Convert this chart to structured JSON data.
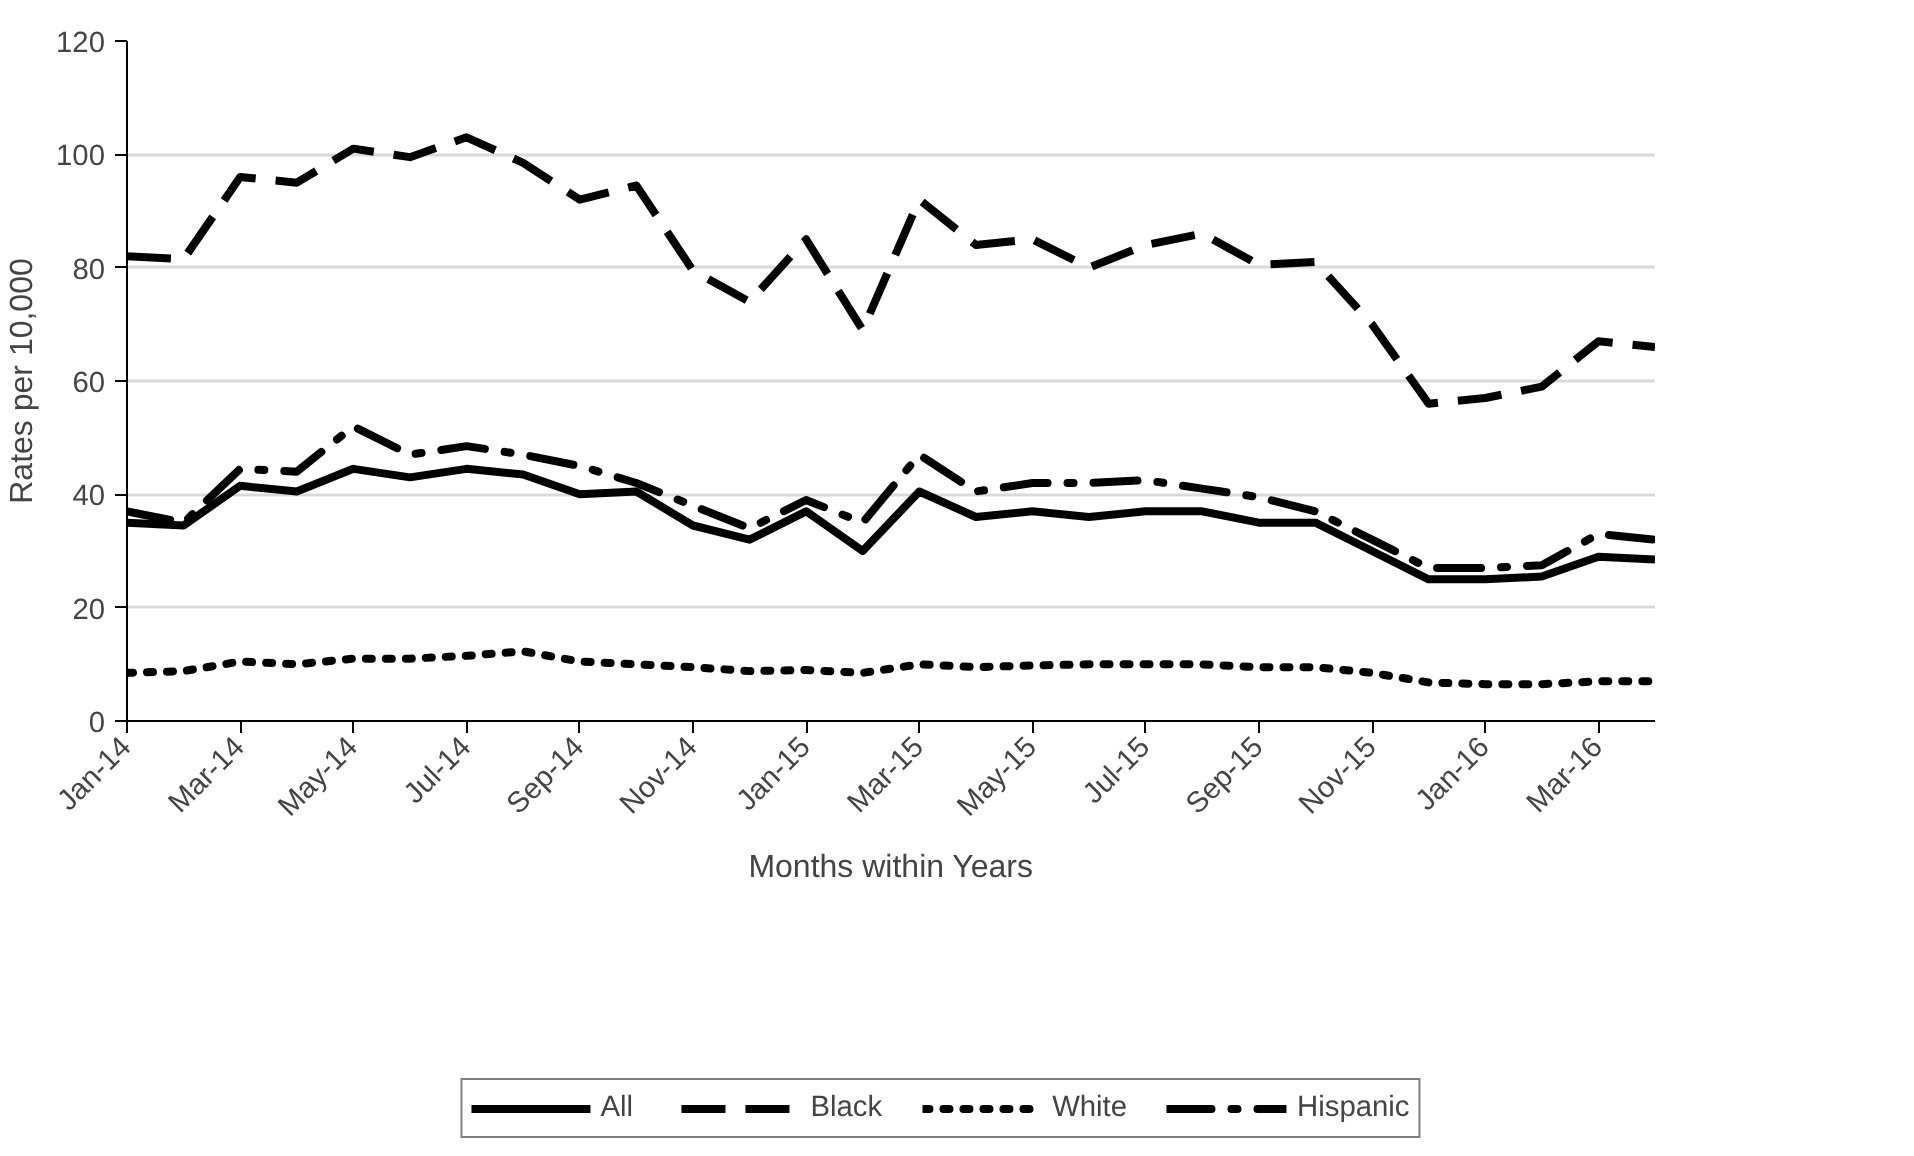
{
  "chart_data": {
    "type": "line",
    "xlabel": "Months within Years",
    "ylabel": "Rates per 10,000",
    "categories": [
      "Jan-14",
      null,
      "Mar-14",
      null,
      "May-14",
      null,
      "Jul-14",
      null,
      "Sep-14",
      null,
      "Nov-14",
      null,
      "Jan-15",
      null,
      "Mar-15",
      null,
      "May-15",
      null,
      "Jul-15",
      null,
      "Sep-15",
      null,
      "Nov-15",
      null,
      "Jan-16",
      null,
      "Mar-16",
      null
    ],
    "series": [
      {
        "name": "All",
        "color": "#000000",
        "line_style": "solid",
        "values": [
          35,
          34.5,
          41.5,
          40.5,
          44.5,
          43,
          44.5,
          43.5,
          40,
          40.5,
          34.5,
          32,
          37,
          30,
          40.5,
          36,
          37,
          36,
          37,
          37,
          35,
          35,
          30,
          25,
          25,
          25.5,
          29,
          28.5
        ]
      },
      {
        "name": "Black",
        "color": "#000000",
        "line_style": "dashed",
        "values": [
          82,
          81.5,
          96,
          95,
          101,
          99.5,
          103,
          98.5,
          92,
          94.5,
          79.5,
          74,
          85,
          69,
          92,
          84,
          85,
          80,
          84,
          86,
          80.5,
          81,
          70,
          56,
          57,
          59,
          67,
          66
        ]
      },
      {
        "name": "White",
        "color": "#000000",
        "line_style": "dotted",
        "values": [
          8.5,
          8.8,
          10.5,
          10,
          11,
          11,
          11.5,
          12.3,
          10.5,
          10,
          9.5,
          8.8,
          9,
          8.5,
          10,
          9.5,
          9.8,
          10,
          10,
          10,
          9.5,
          9.5,
          8.5,
          6.8,
          6.5,
          6.5,
          7,
          7
        ]
      },
      {
        "name": "Hispanic",
        "color": "#000000",
        "line_style": "dashdot",
        "values": [
          37,
          35,
          44.5,
          44,
          52,
          47,
          48.5,
          47,
          45,
          42,
          38,
          34,
          39,
          35,
          47,
          40.5,
          42,
          42,
          42.5,
          41,
          39.5,
          37,
          32,
          27,
          27,
          27.5,
          33,
          32
        ]
      }
    ],
    "ylim": [
      0,
      120
    ],
    "yticks": [
      0,
      20,
      40,
      60,
      80,
      100,
      120
    ],
    "grid": "y",
    "legend": "bottom"
  }
}
